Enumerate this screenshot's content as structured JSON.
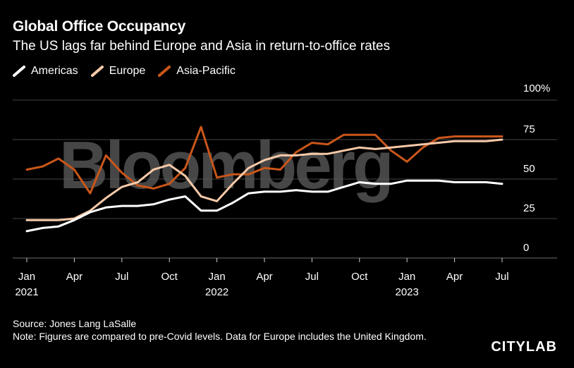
{
  "header": {
    "title": "Global Office Occupancy",
    "subtitle": "The US lags far behind Europe and Asia in return-to-office rates"
  },
  "watermark": "Bloomberg",
  "footer": {
    "source": "Source: Jones Lang LaSalle",
    "note": "Note: Figures are compared to pre-Covid levels. Data for Europe includes the United Kingdom.",
    "brand": "CITYLAB"
  },
  "colors": {
    "Americas": "#ffffff",
    "Europe": "#f6c9a9",
    "Asia-Pacific": "#c9561a",
    "grid": "#5a5a5a",
    "axis": "#cfcfcf"
  },
  "chart_data": {
    "type": "line",
    "title": "Global Office Occupancy",
    "subtitle": "The US lags far behind Europe and Asia in return-to-office rates",
    "xlabel": "",
    "ylabel": "",
    "ylim": [
      0,
      100
    ],
    "yticks": [
      0,
      25,
      50,
      75,
      100
    ],
    "ytick_labels": [
      "0",
      "25",
      "50",
      "75",
      "100%"
    ],
    "xlim": [
      0,
      31
    ],
    "xticks": [
      {
        "month": 0,
        "label": "Jan",
        "year": "2021"
      },
      {
        "month": 3,
        "label": "Apr",
        "year": ""
      },
      {
        "month": 6,
        "label": "Jul",
        "year": ""
      },
      {
        "month": 9,
        "label": "Oct",
        "year": ""
      },
      {
        "month": 12,
        "label": "Jan",
        "year": "2022"
      },
      {
        "month": 15,
        "label": "Apr",
        "year": ""
      },
      {
        "month": 18,
        "label": "Jul",
        "year": ""
      },
      {
        "month": 21,
        "label": "Oct",
        "year": ""
      },
      {
        "month": 24,
        "label": "Jan",
        "year": "2023"
      },
      {
        "month": 27,
        "label": "Apr",
        "year": ""
      },
      {
        "month": 30,
        "label": "Jul",
        "year": ""
      }
    ],
    "x": [
      "2021-01",
      "2021-02",
      "2021-03",
      "2021-04",
      "2021-05",
      "2021-06",
      "2021-07",
      "2021-08",
      "2021-09",
      "2021-10",
      "2021-11",
      "2021-12",
      "2022-01",
      "2022-02",
      "2022-03",
      "2022-04",
      "2022-05",
      "2022-06",
      "2022-07",
      "2022-08",
      "2022-09",
      "2022-10",
      "2022-11",
      "2022-12",
      "2023-01",
      "2023-02",
      "2023-03",
      "2023-04",
      "2023-05",
      "2023-06",
      "2023-07"
    ],
    "grid": true,
    "legend": "top-left",
    "series": [
      {
        "name": "Americas",
        "values": [
          17,
          19,
          20,
          24,
          29,
          32,
          33,
          33,
          34,
          37,
          39,
          30,
          30,
          35,
          41,
          42,
          42,
          43,
          42,
          42,
          45,
          48,
          47,
          47,
          49,
          49,
          49,
          48,
          48,
          48,
          47
        ]
      },
      {
        "name": "Europe",
        "values": [
          24,
          24,
          24,
          25,
          30,
          38,
          45,
          48,
          56,
          59,
          52,
          39,
          36,
          47,
          57,
          62,
          65,
          65,
          66,
          66,
          68,
          70,
          69,
          70,
          71,
          72,
          73,
          74,
          74,
          74,
          75
        ]
      },
      {
        "name": "Asia-Pacific",
        "values": [
          56,
          58,
          63,
          56,
          41,
          65,
          54,
          46,
          44,
          47,
          57,
          83,
          51,
          53,
          53,
          57,
          56,
          67,
          73,
          72,
          78,
          78,
          78,
          68,
          61,
          70,
          76,
          77,
          77,
          77,
          77
        ]
      }
    ]
  }
}
